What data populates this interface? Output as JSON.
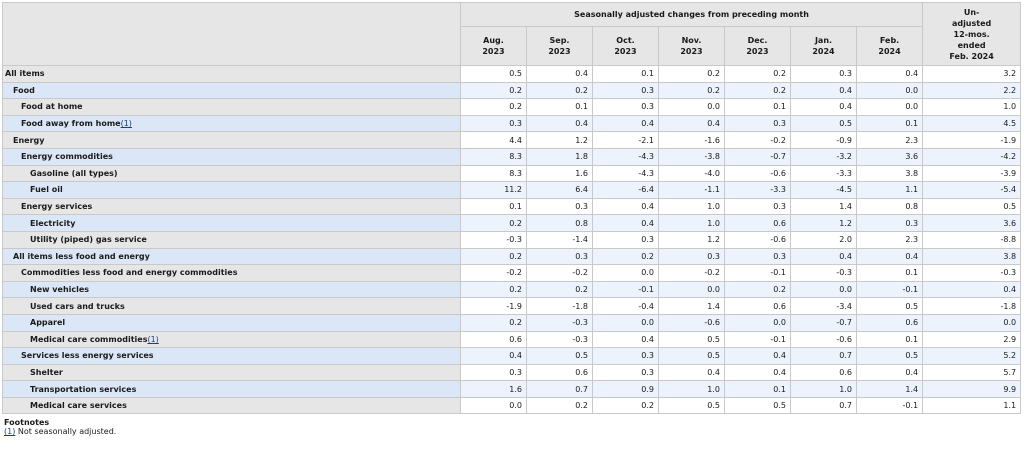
{
  "header": {
    "group_label": "Seasonally adjusted changes from preceding month",
    "months": [
      {
        "m": "Aug.",
        "y": "2023"
      },
      {
        "m": "Sep.",
        "y": "2023"
      },
      {
        "m": "Oct.",
        "y": "2023"
      },
      {
        "m": "Nov.",
        "y": "2023"
      },
      {
        "m": "Dec.",
        "y": "2023"
      },
      {
        "m": "Jan.",
        "y": "2024"
      },
      {
        "m": "Feb.",
        "y": "2024"
      }
    ],
    "unadjusted_lines": [
      "Un-",
      "adjusted",
      "12-mos.",
      "ended",
      "Feb. 2024"
    ]
  },
  "rows": [
    {
      "label": "All items",
      "indent": 0,
      "values": [
        "0.5",
        "0.4",
        "0.1",
        "0.2",
        "0.2",
        "0.3",
        "0.4",
        "3.2"
      ]
    },
    {
      "label": "Food",
      "indent": 1,
      "values": [
        "0.2",
        "0.2",
        "0.3",
        "0.2",
        "0.2",
        "0.4",
        "0.0",
        "2.2"
      ]
    },
    {
      "label": "Food at home",
      "indent": 2,
      "values": [
        "0.2",
        "0.1",
        "0.3",
        "0.0",
        "0.1",
        "0.4",
        "0.0",
        "1.0"
      ]
    },
    {
      "label": "Food away from home",
      "fn": "(1)",
      "indent": 2,
      "values": [
        "0.3",
        "0.4",
        "0.4",
        "0.4",
        "0.3",
        "0.5",
        "0.1",
        "4.5"
      ]
    },
    {
      "label": "Energy",
      "indent": 1,
      "values": [
        "4.4",
        "1.2",
        "-2.1",
        "-1.6",
        "-0.2",
        "-0.9",
        "2.3",
        "-1.9"
      ]
    },
    {
      "label": "Energy commodities",
      "indent": 2,
      "values": [
        "8.3",
        "1.8",
        "-4.3",
        "-3.8",
        "-0.7",
        "-3.2",
        "3.6",
        "-4.2"
      ]
    },
    {
      "label": "Gasoline (all types)",
      "indent": 3,
      "values": [
        "8.3",
        "1.6",
        "-4.3",
        "-4.0",
        "-0.6",
        "-3.3",
        "3.8",
        "-3.9"
      ]
    },
    {
      "label": "Fuel oil",
      "indent": 3,
      "values": [
        "11.2",
        "6.4",
        "-6.4",
        "-1.1",
        "-3.3",
        "-4.5",
        "1.1",
        "-5.4"
      ]
    },
    {
      "label": "Energy services",
      "indent": 2,
      "values": [
        "0.1",
        "0.3",
        "0.4",
        "1.0",
        "0.3",
        "1.4",
        "0.8",
        "0.5"
      ]
    },
    {
      "label": "Electricity",
      "indent": 3,
      "values": [
        "0.2",
        "0.8",
        "0.4",
        "1.0",
        "0.6",
        "1.2",
        "0.3",
        "3.6"
      ]
    },
    {
      "label": "Utility (piped) gas service",
      "indent": 3,
      "values": [
        "-0.3",
        "-1.4",
        "0.3",
        "1.2",
        "-0.6",
        "2.0",
        "2.3",
        "-8.8"
      ]
    },
    {
      "label": "All items less food and energy",
      "indent": 1,
      "values": [
        "0.2",
        "0.3",
        "0.2",
        "0.3",
        "0.3",
        "0.4",
        "0.4",
        "3.8"
      ]
    },
    {
      "label": "Commodities less food and energy commodities",
      "indent": 2,
      "values": [
        "-0.2",
        "-0.2",
        "0.0",
        "-0.2",
        "-0.1",
        "-0.3",
        "0.1",
        "-0.3"
      ]
    },
    {
      "label": "New vehicles",
      "indent": 3,
      "values": [
        "0.2",
        "0.2",
        "-0.1",
        "0.0",
        "0.2",
        "0.0",
        "-0.1",
        "0.4"
      ]
    },
    {
      "label": "Used cars and trucks",
      "indent": 3,
      "values": [
        "-1.9",
        "-1.8",
        "-0.4",
        "1.4",
        "0.6",
        "-3.4",
        "0.5",
        "-1.8"
      ]
    },
    {
      "label": "Apparel",
      "indent": 3,
      "values": [
        "0.2",
        "-0.3",
        "0.0",
        "-0.6",
        "0.0",
        "-0.7",
        "0.6",
        "0.0"
      ]
    },
    {
      "label": "Medical care commodities",
      "fn": "(1)",
      "indent": 3,
      "values": [
        "0.6",
        "-0.3",
        "0.4",
        "0.5",
        "-0.1",
        "-0.6",
        "0.1",
        "2.9"
      ]
    },
    {
      "label": "Services less energy services",
      "indent": 2,
      "values": [
        "0.4",
        "0.5",
        "0.3",
        "0.5",
        "0.4",
        "0.7",
        "0.5",
        "5.2"
      ]
    },
    {
      "label": "Shelter",
      "indent": 3,
      "values": [
        "0.3",
        "0.6",
        "0.3",
        "0.4",
        "0.4",
        "0.6",
        "0.4",
        "5.7"
      ]
    },
    {
      "label": "Transportation services",
      "indent": 3,
      "values": [
        "1.6",
        "0.7",
        "0.9",
        "1.0",
        "0.1",
        "1.0",
        "1.4",
        "9.9"
      ]
    },
    {
      "label": "Medical care services",
      "indent": 3,
      "values": [
        "0.0",
        "0.2",
        "0.2",
        "0.5",
        "0.5",
        "0.7",
        "-0.1",
        "1.1"
      ]
    }
  ],
  "footnotes": {
    "title": "Footnotes",
    "items": [
      {
        "ref": "(1)",
        "text": " Not seasonally adjusted."
      }
    ]
  }
}
